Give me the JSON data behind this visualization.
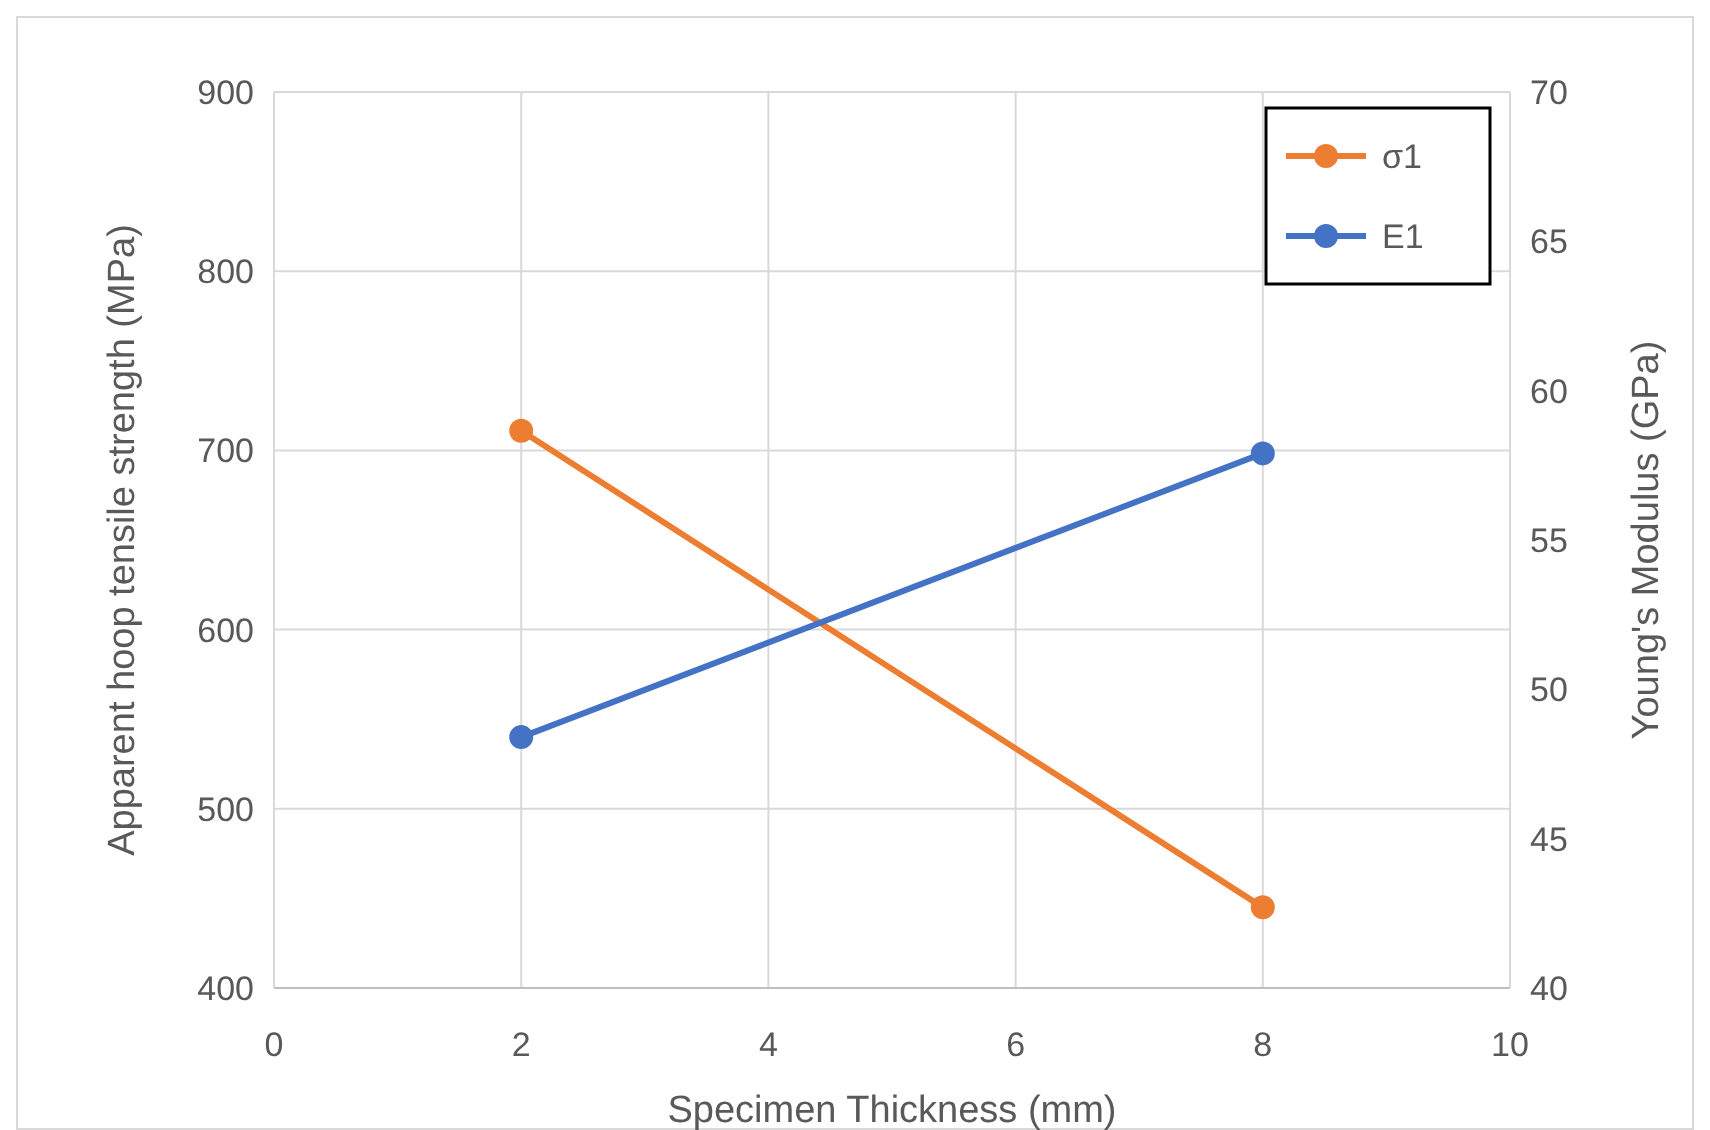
{
  "chart_data": {
    "type": "line",
    "xlabel": "Specimen Thickness (mm)",
    "ylabel": "Apparent hoop tensile strength (MPa)",
    "y2label": "Young's Modulus (GPa)",
    "x": [
      2,
      8
    ],
    "series": [
      {
        "name": "σ1",
        "color": "#ed7d31",
        "values": [
          711,
          445
        ]
      },
      {
        "name": "E1",
        "color": "#4472c4",
        "values": [
          48.4,
          57.9
        ],
        "axis": "y2"
      }
    ],
    "xlim": [
      0,
      10
    ],
    "xticks": [
      0,
      2,
      4,
      6,
      8,
      10
    ],
    "ylim": [
      400,
      900
    ],
    "yticks": [
      400,
      500,
      600,
      700,
      800,
      900
    ],
    "y2lim": [
      40,
      70
    ],
    "y2ticks": [
      40,
      45,
      50,
      55,
      60,
      65,
      70
    ],
    "grid": true,
    "legend": "top right",
    "marker": "circle",
    "line_style": "solid"
  }
}
